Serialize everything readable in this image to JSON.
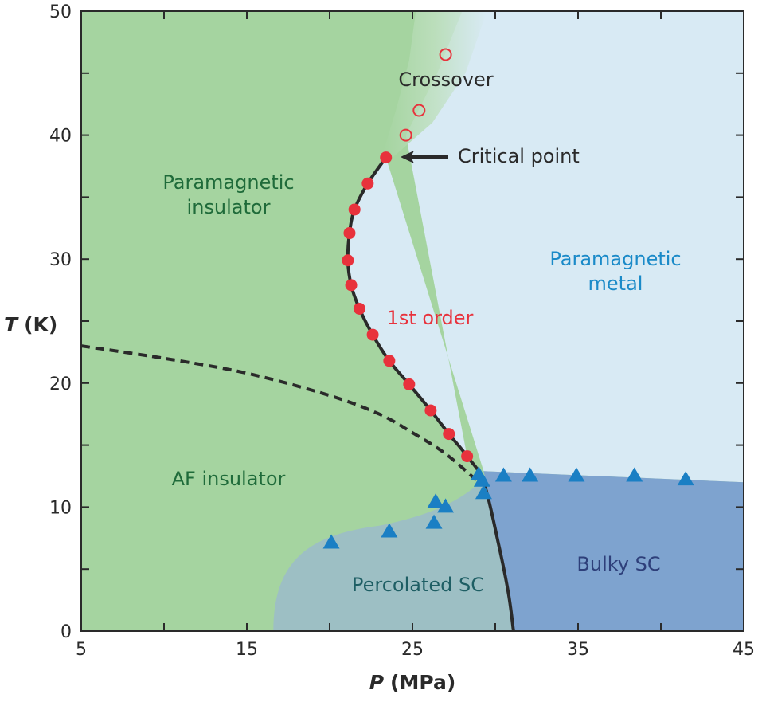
{
  "chart_data": {
    "type": "scatter",
    "title": "",
    "xlabel": "P (MPa)",
    "xlabel_var": "P",
    "xlabel_unit": "(MPa)",
    "ylabel": "T (K)",
    "ylabel_var": "T",
    "ylabel_unit": "(K)",
    "xlim": [
      5,
      45
    ],
    "ylim": [
      0,
      50
    ],
    "xticks": [
      5,
      15,
      25,
      35,
      45
    ],
    "yticks": [
      0,
      10,
      20,
      30,
      40,
      50
    ],
    "grid": false,
    "series": [
      {
        "marker": "filled-circle",
        "color": "#e8323c",
        "points": [
          [
            23.4,
            38.2
          ],
          [
            22.3,
            36.1
          ],
          [
            21.5,
            34.0
          ],
          [
            21.2,
            32.1
          ],
          [
            21.1,
            29.9
          ],
          [
            21.3,
            27.9
          ],
          [
            21.8,
            26.0
          ],
          [
            22.6,
            23.9
          ],
          [
            23.6,
            21.8
          ],
          [
            24.8,
            19.9
          ],
          [
            26.1,
            17.8
          ],
          [
            27.2,
            15.9
          ],
          [
            28.3,
            14.1
          ]
        ]
      },
      {
        "marker": "open-circle",
        "color": "#e8323c",
        "points": [
          [
            24.6,
            40.0
          ],
          [
            25.4,
            42.0
          ],
          [
            27.0,
            46.5
          ]
        ]
      },
      {
        "marker": "triangle",
        "color": "#1a7fc4",
        "points": [
          [
            20.1,
            7.1
          ],
          [
            23.6,
            8.0
          ],
          [
            26.3,
            8.7
          ],
          [
            26.4,
            10.4
          ],
          [
            27.0,
            10.0
          ],
          [
            29.0,
            12.6
          ],
          [
            29.2,
            12.1
          ],
          [
            29.3,
            11.1
          ],
          [
            30.5,
            12.5
          ],
          [
            32.1,
            12.5
          ],
          [
            34.9,
            12.5
          ],
          [
            38.4,
            12.5
          ],
          [
            41.5,
            12.2
          ]
        ]
      }
    ],
    "lines": {
      "first_order": {
        "style": "solid",
        "points": [
          [
            23.4,
            38.2
          ],
          [
            22.3,
            36.1
          ],
          [
            21.5,
            34.0
          ],
          [
            21.2,
            32.1
          ],
          [
            21.1,
            29.9
          ],
          [
            21.3,
            27.9
          ],
          [
            21.8,
            26.0
          ],
          [
            22.6,
            23.9
          ],
          [
            23.6,
            21.8
          ],
          [
            24.8,
            19.9
          ],
          [
            26.1,
            17.8
          ],
          [
            27.2,
            15.9
          ],
          [
            28.3,
            14.1
          ],
          [
            29.3,
            12.0
          ],
          [
            30.2,
            7.0
          ],
          [
            30.8,
            3.0
          ],
          [
            31.1,
            0
          ]
        ]
      },
      "af_boundary": {
        "style": "dashed",
        "points": [
          [
            5,
            23
          ],
          [
            10,
            22
          ],
          [
            15,
            20.8
          ],
          [
            20,
            19
          ],
          [
            23,
            17.5
          ],
          [
            25,
            16
          ],
          [
            27,
            14.3
          ],
          [
            29,
            12
          ]
        ]
      }
    },
    "regions": [
      {
        "label": "Paramagnetic insulator",
        "lines": [
          "Paramagnetic",
          "insulator"
        ],
        "color": "#a5d4a0",
        "text_color": "#1f6b3a"
      },
      {
        "label": "Paramagnetic metal",
        "lines": [
          "Paramagnetic",
          "metal"
        ],
        "color": "#d8eaf4",
        "text_color": "#1a8ac8"
      },
      {
        "label": "AF insulator",
        "color": "#a5d4a0",
        "text_color": "#1f6b3a"
      },
      {
        "label": "Percolated SC",
        "color": "#9dbfc4",
        "text_color": "#1e5e64"
      },
      {
        "label": "Bulky SC",
        "color": "#7ea3cf",
        "text_color": "#2e3f7a"
      }
    ],
    "annotations": {
      "crossover": "Crossover",
      "critical_point": "Critical point",
      "first_order": "1st order"
    }
  }
}
